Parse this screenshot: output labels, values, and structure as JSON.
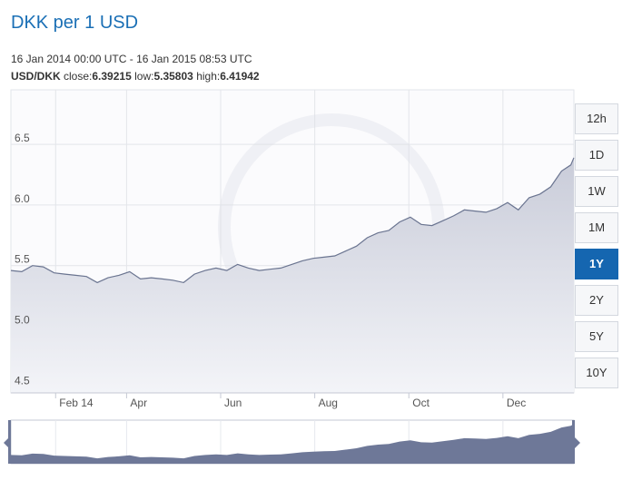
{
  "header": {
    "title": "DKK per 1 USD",
    "range_text": "16 Jan 2014 00:00 UTC - 16 Jan 2015 08:53 UTC",
    "pair": "USD/DKK",
    "close_label": "close:",
    "close_value": "6.39215",
    "low_label": "low:",
    "low_value": "5.35803",
    "high_label": "high:",
    "high_value": "6.41942"
  },
  "periods": [
    {
      "label": "12h",
      "active": false
    },
    {
      "label": "1D",
      "active": false
    },
    {
      "label": "1W",
      "active": false
    },
    {
      "label": "1M",
      "active": false
    },
    {
      "label": "1Y",
      "active": true
    },
    {
      "label": "2Y",
      "active": false
    },
    {
      "label": "5Y",
      "active": false
    },
    {
      "label": "10Y",
      "active": false
    }
  ],
  "colors": {
    "line": "#6a7490",
    "area_top": "#c9ccd9",
    "area_bottom": "#f3f4f8",
    "navigator_fill": "#6e7898",
    "accent": "#1566b0"
  },
  "chart_data": {
    "type": "area",
    "y_ticks": [
      "6.5",
      "6.0",
      "5.5",
      "5.0",
      "4.5"
    ],
    "y_tick_values": [
      6.5,
      6.0,
      5.5,
      5.0,
      4.5
    ],
    "ylim": [
      4.45,
      6.95
    ],
    "xlim": [
      "2014-01-16",
      "2015-01-16"
    ],
    "x_ticks": [
      {
        "label": "Feb 14",
        "date": "2014-02-14"
      },
      {
        "label": "Apr",
        "date": "2014-04-01"
      },
      {
        "label": "Jun",
        "date": "2014-06-01"
      },
      {
        "label": "Aug",
        "date": "2014-08-01"
      },
      {
        "label": "Oct",
        "date": "2014-10-01"
      },
      {
        "label": "Dec",
        "date": "2014-12-01"
      }
    ],
    "series": [
      {
        "points": [
          [
            "2014-01-16",
            5.46
          ],
          [
            "2014-01-23",
            5.45
          ],
          [
            "2014-01-30",
            5.5
          ],
          [
            "2014-02-06",
            5.49
          ],
          [
            "2014-02-13",
            5.44
          ],
          [
            "2014-02-20",
            5.43
          ],
          [
            "2014-02-27",
            5.42
          ],
          [
            "2014-03-06",
            5.41
          ],
          [
            "2014-03-13",
            5.36
          ],
          [
            "2014-03-20",
            5.4
          ],
          [
            "2014-03-27",
            5.42
          ],
          [
            "2014-04-03",
            5.45
          ],
          [
            "2014-04-10",
            5.39
          ],
          [
            "2014-04-17",
            5.4
          ],
          [
            "2014-04-24",
            5.39
          ],
          [
            "2014-05-01",
            5.38
          ],
          [
            "2014-05-08",
            5.36
          ],
          [
            "2014-05-15",
            5.43
          ],
          [
            "2014-05-22",
            5.46
          ],
          [
            "2014-05-29",
            5.48
          ],
          [
            "2014-06-05",
            5.46
          ],
          [
            "2014-06-12",
            5.51
          ],
          [
            "2014-06-19",
            5.48
          ],
          [
            "2014-06-26",
            5.46
          ],
          [
            "2014-07-03",
            5.47
          ],
          [
            "2014-07-10",
            5.48
          ],
          [
            "2014-07-17",
            5.51
          ],
          [
            "2014-07-24",
            5.54
          ],
          [
            "2014-07-31",
            5.56
          ],
          [
            "2014-08-07",
            5.57
          ],
          [
            "2014-08-14",
            5.58
          ],
          [
            "2014-08-21",
            5.62
          ],
          [
            "2014-08-28",
            5.66
          ],
          [
            "2014-09-04",
            5.73
          ],
          [
            "2014-09-11",
            5.77
          ],
          [
            "2014-09-18",
            5.79
          ],
          [
            "2014-09-25",
            5.86
          ],
          [
            "2014-10-02",
            5.9
          ],
          [
            "2014-10-09",
            5.84
          ],
          [
            "2014-10-16",
            5.83
          ],
          [
            "2014-10-23",
            5.87
          ],
          [
            "2014-10-30",
            5.91
          ],
          [
            "2014-11-06",
            5.96
          ],
          [
            "2014-11-13",
            5.95
          ],
          [
            "2014-11-20",
            5.94
          ],
          [
            "2014-11-27",
            5.97
          ],
          [
            "2014-12-04",
            6.02
          ],
          [
            "2014-12-11",
            5.96
          ],
          [
            "2014-12-18",
            6.06
          ],
          [
            "2014-12-25",
            6.09
          ],
          [
            "2015-01-01",
            6.15
          ],
          [
            "2015-01-08",
            6.28
          ],
          [
            "2015-01-14",
            6.33
          ],
          [
            "2015-01-16",
            6.39
          ]
        ]
      }
    ],
    "grid": true,
    "legend": "none"
  }
}
